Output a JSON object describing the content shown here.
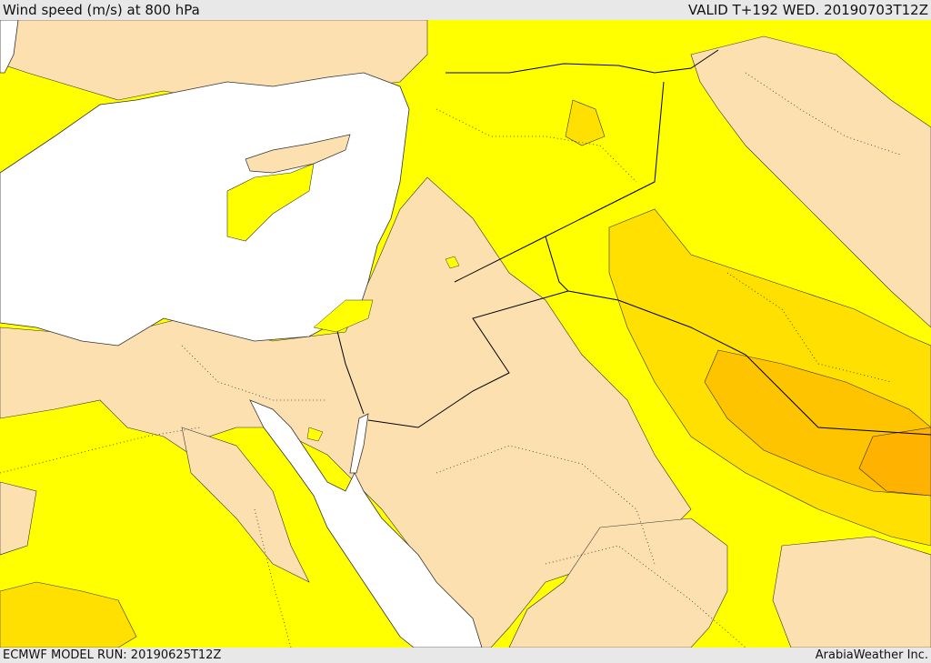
{
  "header": {
    "title": "Wind speed (m/s) at 800 hPa",
    "valid_time": "VALID T+192 WED. 20190703T12Z"
  },
  "footer": {
    "model_run": "ECMWF MODEL RUN: 20190625T12Z",
    "credit": "ArabiaWeather Inc."
  },
  "colors": {
    "sea": "#ffffff",
    "calm": "#fde0b0",
    "light": "#ffff00",
    "moderate": "#ffe000",
    "strong": "#ffc400",
    "stronger": "#ffb300",
    "border": "#000000",
    "bar": "#e8e8e8"
  }
}
